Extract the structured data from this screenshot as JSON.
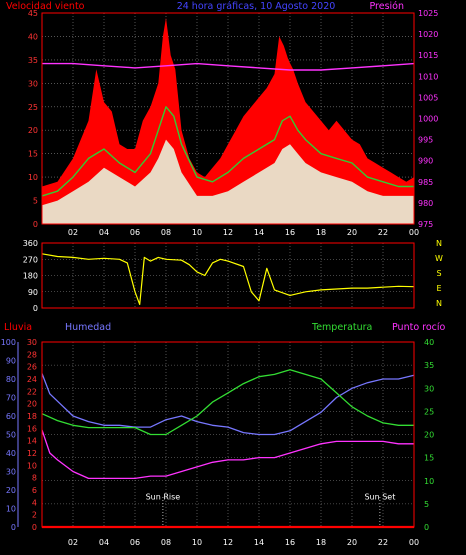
{
  "header": {
    "left_title": "Velocidad viento",
    "center_title": "24 hora gráficas, 10 Agosto 2020",
    "right_title": "Presión"
  },
  "colors": {
    "background": "#000000",
    "axis": "#ff0000",
    "grid": "#888888",
    "gust": "#ff0000",
    "wind_avg": "#33cc33",
    "wind_speed": "#e6ffe6",
    "pressure": "#ff33ff",
    "direction": "#ffff00",
    "rain": "#ff0000",
    "humidity": "#7777ff",
    "temperature": "#33dd33",
    "dew_point": "#ff33ff",
    "sun_marker": "#dddddd"
  },
  "chart_data": [
    {
      "id": "wind",
      "type": "line",
      "title": "Velocidad viento",
      "y_left_ticks": [
        0,
        5,
        10,
        15,
        20,
        25,
        30,
        35,
        40,
        45
      ],
      "y_right_ticks": [
        975,
        980,
        985,
        990,
        995,
        1000,
        1005,
        1010,
        1015,
        1020,
        1025
      ],
      "x_ticks": [
        "02",
        "04",
        "06",
        "08",
        "10",
        "12",
        "14",
        "16",
        "18",
        "20",
        "22",
        "00"
      ],
      "xlim": [
        0,
        24
      ],
      "ylim_left": [
        0,
        45
      ],
      "ylim_right": [
        975,
        1025
      ],
      "series": [
        {
          "name": "Velocidad viento",
          "role": "gust",
          "x": [
            0,
            1,
            2,
            3,
            3.5,
            4,
            4.5,
            5,
            5.5,
            6,
            6.5,
            7,
            7.5,
            7.8,
            8,
            8.3,
            8.6,
            9,
            9.5,
            10,
            10.5,
            11,
            11.5,
            12,
            12.5,
            13,
            13.5,
            14,
            14.5,
            15,
            15.3,
            15.6,
            15.9,
            16.2,
            16.5,
            17,
            17.5,
            18,
            18.5,
            19,
            19.5,
            20,
            20.5,
            21,
            21.5,
            22,
            22.5,
            23,
            23.5,
            24
          ],
          "y": [
            8,
            9,
            14,
            22,
            33,
            26,
            24,
            17,
            16,
            16,
            22,
            25,
            30,
            40,
            44,
            36,
            33,
            20,
            14,
            11,
            10,
            12,
            14,
            17,
            20,
            23,
            25,
            27,
            29,
            32,
            40,
            38,
            35,
            33,
            30,
            26,
            24,
            22,
            20,
            22,
            20,
            18,
            17,
            14,
            13,
            12,
            11,
            10,
            9,
            10
          ]
        },
        {
          "name": "",
          "role": "average",
          "x": [
            0,
            1,
            2,
            3,
            4,
            5,
            6,
            7,
            7.5,
            8,
            8.5,
            9,
            10,
            11,
            12,
            13,
            14,
            15,
            15.5,
            16,
            16.5,
            17,
            18,
            19,
            20,
            21,
            22,
            23,
            24
          ],
          "y": [
            6,
            7,
            10,
            14,
            16,
            13,
            11,
            15,
            20,
            25,
            23,
            17,
            10,
            9,
            11,
            14,
            16,
            18,
            22,
            23,
            20,
            18,
            15,
            14,
            13,
            10,
            9,
            8,
            8
          ]
        },
        {
          "name": "",
          "role": "speed",
          "x": [
            0,
            1,
            2,
            3,
            4,
            5,
            6,
            7,
            7.5,
            8,
            8.5,
            9,
            10,
            11,
            12,
            13,
            14,
            15,
            15.5,
            16,
            16.5,
            17,
            18,
            19,
            20,
            21,
            22,
            23,
            24
          ],
          "y": [
            4,
            5,
            7,
            9,
            12,
            10,
            8,
            11,
            14,
            18,
            16,
            11,
            6,
            6,
            7,
            9,
            11,
            13,
            16,
            17,
            15,
            13,
            11,
            10,
            9,
            7,
            6,
            6,
            6
          ]
        },
        {
          "name": "Presión",
          "role": "pressure",
          "axis": "right",
          "x": [
            0,
            2,
            4,
            6,
            8,
            10,
            12,
            14,
            16,
            18,
            20,
            22,
            24
          ],
          "y": [
            1013,
            1013,
            1012.5,
            1012,
            1012.5,
            1013,
            1012.5,
            1012,
            1011.5,
            1011.5,
            1012,
            1012.5,
            1013
          ]
        }
      ]
    },
    {
      "id": "direction",
      "type": "line",
      "y_left_ticks": [
        0,
        90,
        180,
        270,
        360
      ],
      "compass_labels": [
        "N",
        "W",
        "S",
        "E",
        "N"
      ],
      "xlim": [
        0,
        24
      ],
      "ylim": [
        0,
        360
      ],
      "series": [
        {
          "name": "",
          "x": [
            0,
            1,
            2,
            3,
            4,
            5,
            5.5,
            6,
            6.3,
            6.6,
            7,
            7.5,
            8,
            9,
            9.5,
            10,
            10.5,
            11,
            11.5,
            12,
            13,
            13.5,
            14,
            14.5,
            15,
            16,
            17,
            18,
            19,
            20,
            21,
            22,
            23,
            24
          ],
          "y": [
            300,
            285,
            280,
            270,
            275,
            270,
            250,
            90,
            20,
            280,
            260,
            280,
            270,
            265,
            240,
            200,
            180,
            250,
            270,
            260,
            230,
            90,
            40,
            220,
            100,
            70,
            90,
            100,
            105,
            110,
            110,
            115,
            120,
            118
          ]
        }
      ]
    },
    {
      "id": "humidity-temp",
      "type": "line",
      "left_titles": [
        "Lluvia",
        "Humedad"
      ],
      "right_titles": [
        "Temperatura",
        "Punto rocío"
      ],
      "y_axis1_ticks": [
        0,
        10,
        20,
        30,
        40,
        50,
        60,
        70,
        80,
        90,
        100
      ],
      "y_axis2_ticks": [
        0,
        2,
        4,
        6,
        8,
        10,
        12,
        14,
        16,
        18,
        20,
        22,
        24,
        26,
        28,
        30
      ],
      "y_right_ticks": [
        0,
        5,
        10,
        15,
        20,
        25,
        30,
        35,
        40
      ],
      "xlim": [
        0,
        24
      ],
      "ylim_humidity": [
        0,
        100
      ],
      "ylim_temperature": [
        0,
        40
      ],
      "sun_events": [
        {
          "label": "Sun Rise",
          "x": 7.8
        },
        {
          "label": "Sun Set",
          "x": 21.8
        }
      ],
      "series": [
        {
          "name": "Lluvia",
          "x": [
            0,
            24
          ],
          "y": [
            0,
            0
          ]
        },
        {
          "name": "Humedad",
          "x": [
            0,
            0.5,
            1,
            2,
            3,
            4,
            5,
            6,
            7,
            8,
            9,
            10,
            11,
            12,
            13,
            14,
            15,
            16,
            17,
            18,
            19,
            20,
            21,
            22,
            23,
            24
          ],
          "y": [
            83,
            72,
            68,
            60,
            57,
            55,
            55,
            54,
            54,
            58,
            60,
            57,
            55,
            54,
            51,
            50,
            50,
            52,
            57,
            62,
            70,
            75,
            78,
            80,
            80,
            82
          ]
        },
        {
          "name": "Temperatura",
          "x": [
            0,
            1,
            2,
            3,
            4,
            5,
            6,
            7,
            8,
            9,
            10,
            11,
            12,
            13,
            14,
            15,
            16,
            17,
            18,
            19,
            20,
            21,
            22,
            23,
            24
          ],
          "y": [
            24.5,
            23,
            22,
            21.5,
            21.5,
            21.5,
            21.5,
            20,
            20,
            22,
            24,
            27,
            29,
            31,
            32.5,
            33,
            34,
            33,
            32,
            29,
            26,
            24,
            22.5,
            22,
            22
          ]
        },
        {
          "name": "Punto rocío",
          "x": [
            0,
            0.5,
            1,
            2,
            3,
            4,
            5,
            6,
            7,
            8,
            9,
            10,
            11,
            12,
            13,
            14,
            15,
            16,
            17,
            18,
            19,
            20,
            21,
            22,
            23,
            24
          ],
          "y": [
            21,
            16,
            14.5,
            12,
            10.5,
            10.5,
            10.5,
            10.5,
            11,
            11,
            12,
            13,
            14,
            14.5,
            14.5,
            15,
            15,
            16,
            17,
            18,
            18.5,
            18.5,
            18.5,
            18.5,
            18,
            18
          ]
        }
      ]
    }
  ]
}
